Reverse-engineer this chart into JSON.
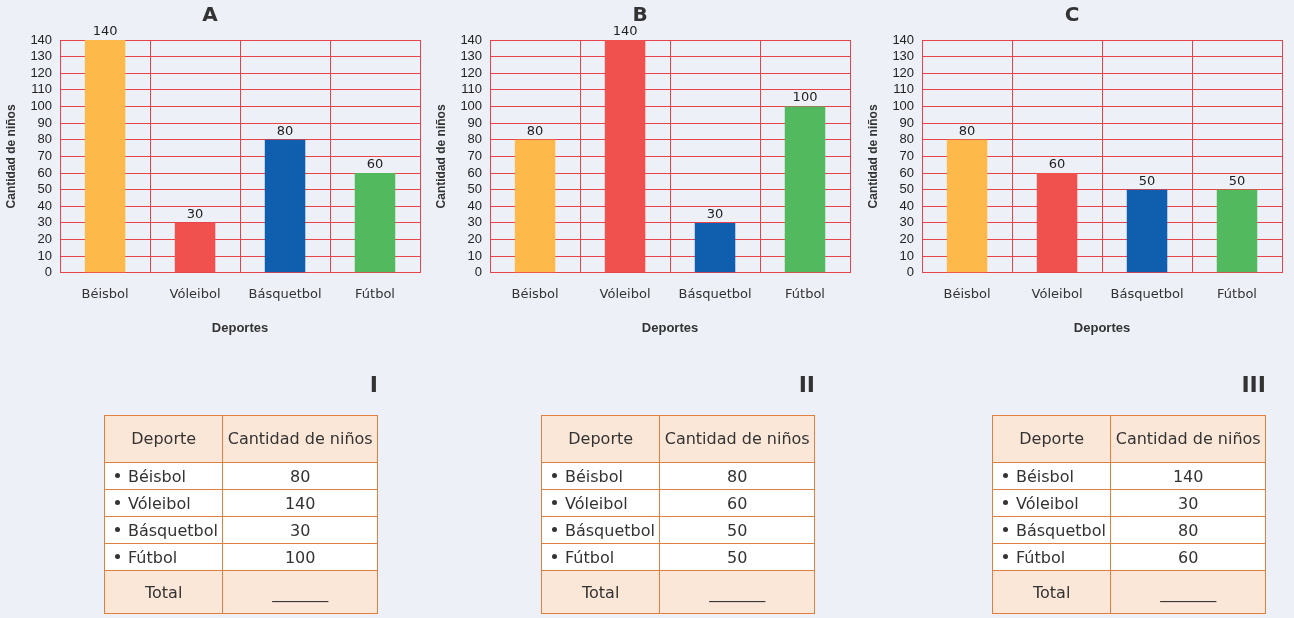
{
  "chart_data": [
    {
      "type": "bar",
      "title": "A",
      "xlabel": "Deportes",
      "ylabel": "Cantidad de niños",
      "categories": [
        "Béisbol",
        "Vóleibol",
        "Básquetbol",
        "Fútbol"
      ],
      "values": [
        140,
        30,
        80,
        60
      ],
      "colors": [
        "#fdb94a",
        "#f0514f",
        "#0f5fae",
        "#52b95e"
      ],
      "ylim": [
        0,
        140
      ],
      "yticks": [
        0,
        10,
        20,
        30,
        40,
        50,
        60,
        70,
        80,
        90,
        100,
        110,
        120,
        130,
        140
      ],
      "grid": true,
      "data_labels": true
    },
    {
      "type": "bar",
      "title": "B",
      "xlabel": "Deportes",
      "ylabel": "Cantidad de niños",
      "categories": [
        "Béisbol",
        "Vóleibol",
        "Básquetbol",
        "Fútbol"
      ],
      "values": [
        80,
        140,
        30,
        100
      ],
      "colors": [
        "#fdb94a",
        "#f0514f",
        "#0f5fae",
        "#52b95e"
      ],
      "ylim": [
        0,
        140
      ],
      "yticks": [
        0,
        10,
        20,
        30,
        40,
        50,
        60,
        70,
        80,
        90,
        100,
        110,
        120,
        130,
        140
      ],
      "grid": true,
      "data_labels": true
    },
    {
      "type": "bar",
      "title": "C",
      "xlabel": "Deportes",
      "ylabel": "Cantidad de niños",
      "categories": [
        "Béisbol",
        "Vóleibol",
        "Básquetbol",
        "Fútbol"
      ],
      "values": [
        80,
        60,
        50,
        50
      ],
      "colors": [
        "#fdb94a",
        "#f0514f",
        "#0f5fae",
        "#52b95e"
      ],
      "ylim": [
        0,
        140
      ],
      "yticks": [
        0,
        10,
        20,
        30,
        40,
        50,
        60,
        70,
        80,
        90,
        100,
        110,
        120,
        130,
        140
      ],
      "grid": true,
      "data_labels": true
    },
    {
      "type": "other",
      "title": "I",
      "categories": [
        "Béisbol",
        "Vóleibol",
        "Básquetbol",
        "Fútbol"
      ],
      "values": [
        80,
        140,
        30,
        100
      ],
      "data_labels": true,
      "annotations": [
        "Deporte",
        "Cantidad de niños",
        "Total",
        "_______"
      ]
    },
    {
      "type": "other",
      "title": "II",
      "categories": [
        "Béisbol",
        "Vóleibol",
        "Básquetbol",
        "Fútbol"
      ],
      "values": [
        80,
        60,
        50,
        50
      ],
      "data_labels": true,
      "annotations": [
        "Deporte",
        "Cantidad de niños",
        "Total",
        "_______"
      ]
    },
    {
      "type": "other",
      "title": "III",
      "categories": [
        "Béisbol",
        "Vóleibol",
        "Básquetbol",
        "Fútbol"
      ],
      "values": [
        140,
        30,
        80,
        60
      ],
      "data_labels": true,
      "annotations": [
        "Deporte",
        "Cantidad de niños",
        "Total",
        "_______"
      ]
    }
  ]
}
